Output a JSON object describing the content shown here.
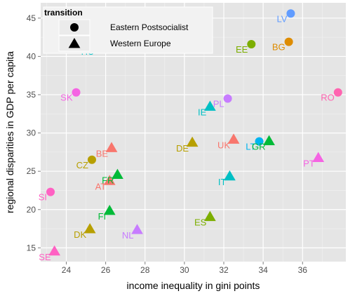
{
  "chart_data": {
    "type": "scatter",
    "xlabel": "income inequality in gini points",
    "ylabel": "regional disparities in GDP per capita",
    "xlim": [
      22.7,
      38.2
    ],
    "ylim": [
      13.2,
      47.0
    ],
    "x_ticks": [
      24,
      26,
      28,
      30,
      32,
      34,
      36
    ],
    "y_ticks": [
      15,
      20,
      25,
      30,
      35,
      40,
      45
    ],
    "grid": true,
    "legend": {
      "title": "transition",
      "placement": "top-left",
      "entries": [
        {
          "label": "Eastern Postsocialist",
          "shape": "circle"
        },
        {
          "label": "Western Europe",
          "shape": "triangle"
        }
      ]
    },
    "colors": {
      "panel": "#e5e5e5",
      "grid_major": "#ffffff",
      "grid_minor": "#f2f2f2",
      "legend_marker": "#000000"
    },
    "points": [
      {
        "label": "LV",
        "x": 35.4,
        "y": 45.6,
        "shape": "circle",
        "color": "#619CFF"
      },
      {
        "label": "HU",
        "x": 25.6,
        "y": 41.3,
        "shape": "circle",
        "color": "#00BFC4"
      },
      {
        "label": "EE",
        "x": 33.4,
        "y": 41.6,
        "shape": "circle",
        "color": "#7CAE00"
      },
      {
        "label": "BG",
        "x": 35.3,
        "y": 41.9,
        "shape": "circle",
        "color": "#DE8C00"
      },
      {
        "label": "SK",
        "x": 24.5,
        "y": 35.3,
        "shape": "circle",
        "color": "#F564E3"
      },
      {
        "label": "PL",
        "x": 32.2,
        "y": 34.5,
        "shape": "circle",
        "color": "#C77CFF"
      },
      {
        "label": "RO",
        "x": 37.8,
        "y": 35.3,
        "shape": "circle",
        "color": "#FF64B0"
      },
      {
        "label": "LT",
        "x": 33.8,
        "y": 28.9,
        "shape": "circle",
        "color": "#00B4F0"
      },
      {
        "label": "CZ",
        "x": 25.3,
        "y": 26.5,
        "shape": "circle",
        "color": "#B79F00"
      },
      {
        "label": "SI",
        "x": 23.2,
        "y": 22.3,
        "shape": "circle",
        "color": "#FF61C3"
      },
      {
        "label": "IE",
        "x": 31.3,
        "y": 33.4,
        "shape": "triangle",
        "color": "#00BFC4"
      },
      {
        "label": "UK",
        "x": 32.5,
        "y": 29.1,
        "shape": "triangle",
        "color": "#F8766D"
      },
      {
        "label": "DE",
        "x": 30.4,
        "y": 28.7,
        "shape": "triangle",
        "color": "#B79F00"
      },
      {
        "label": "GR",
        "x": 34.3,
        "y": 28.9,
        "shape": "triangle",
        "color": "#00BA38"
      },
      {
        "label": "BE",
        "x": 26.3,
        "y": 28.0,
        "shape": "triangle",
        "color": "#F8766D"
      },
      {
        "label": "PT",
        "x": 36.8,
        "y": 26.7,
        "shape": "triangle",
        "color": "#F564E3"
      },
      {
        "label": "FR",
        "x": 26.6,
        "y": 24.5,
        "shape": "triangle",
        "color": "#00BA38"
      },
      {
        "label": "AT",
        "x": 26.2,
        "y": 23.7,
        "shape": "triangle",
        "color": "#F8766D"
      },
      {
        "label": "IT",
        "x": 32.3,
        "y": 24.3,
        "shape": "triangle",
        "color": "#00BFC4"
      },
      {
        "label": "FI",
        "x": 26.2,
        "y": 19.8,
        "shape": "triangle",
        "color": "#00BA38"
      },
      {
        "label": "ES",
        "x": 31.3,
        "y": 19.0,
        "shape": "triangle",
        "color": "#7CAE00"
      },
      {
        "label": "DK",
        "x": 25.2,
        "y": 17.4,
        "shape": "triangle",
        "color": "#B79F00"
      },
      {
        "label": "NL",
        "x": 27.6,
        "y": 17.3,
        "shape": "triangle",
        "color": "#C77CFF"
      },
      {
        "label": "SE",
        "x": 23.4,
        "y": 14.5,
        "shape": "triangle",
        "color": "#FF61C3"
      }
    ]
  }
}
